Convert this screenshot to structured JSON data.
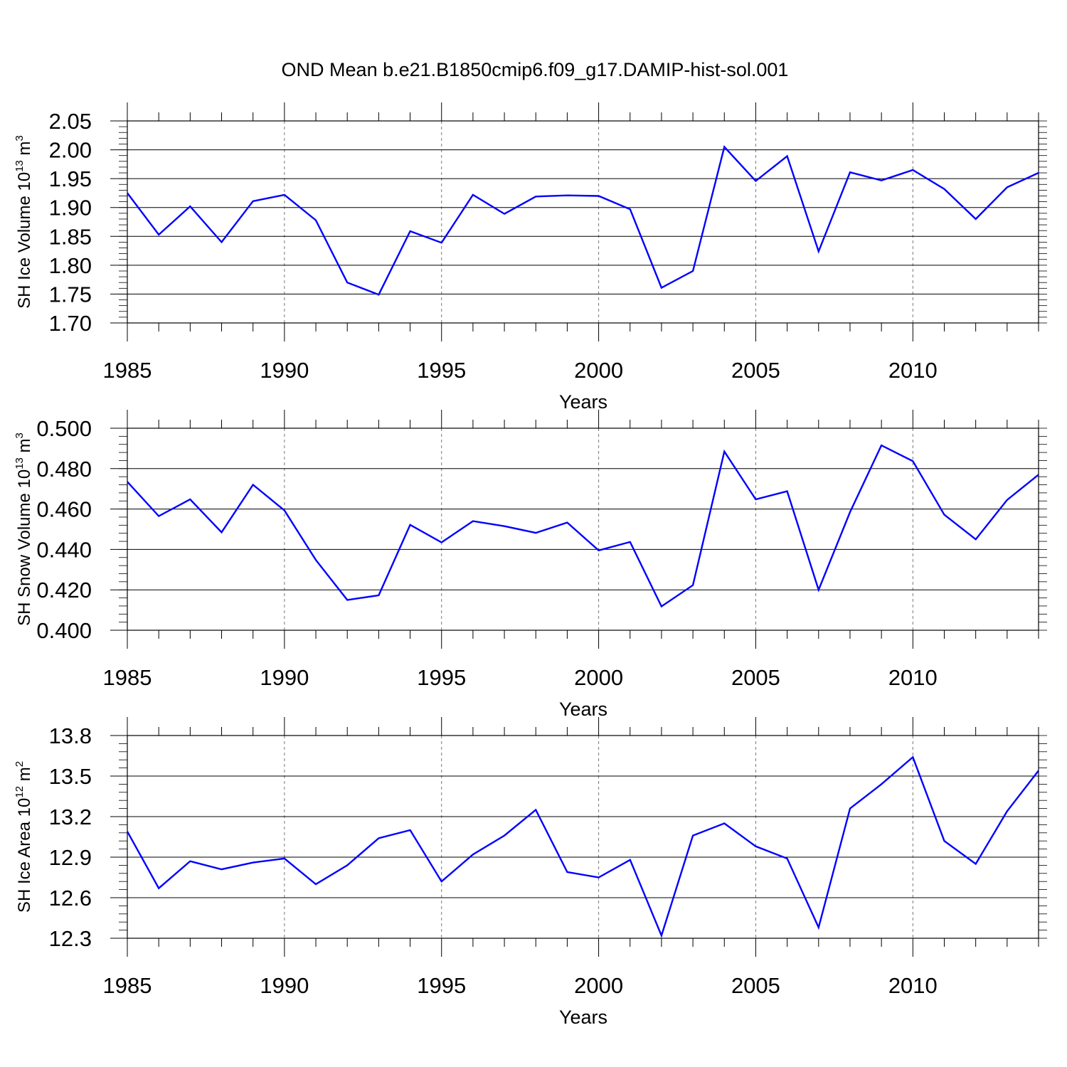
{
  "figure_title": "OND Mean b.e21.B1850cmip6.f09_g17.DAMIP-hist-sol.001",
  "line_color": "#0000ff",
  "chart_data": [
    {
      "type": "line",
      "title": "",
      "xlabel": "Years",
      "ylabel_main": "SH Ice Volume 10",
      "ylabel_exp": "13",
      "ylabel_unit": "m",
      "ylabel_unit_exp": "3",
      "xlim": [
        1985,
        2014
      ],
      "ylim": [
        1.7,
        2.05
      ],
      "xticks": [
        1985,
        1990,
        1995,
        2000,
        2005,
        2010
      ],
      "yticks": [
        1.7,
        1.75,
        1.8,
        1.85,
        1.9,
        1.95,
        2.0,
        2.05
      ],
      "ytick_labels": [
        "1.70",
        "1.75",
        "1.80",
        "1.85",
        "1.90",
        "1.95",
        "2.00",
        "2.05"
      ],
      "yminor_step": 0.01,
      "series": [
        {
          "name": "SH Ice Volume",
          "x": [
            1985,
            1986,
            1987,
            1988,
            1989,
            1990,
            1991,
            1992,
            1993,
            1994,
            1995,
            1996,
            1997,
            1998,
            1999,
            2000,
            2001,
            2002,
            2003,
            2004,
            2005,
            2006,
            2007,
            2008,
            2009,
            2010,
            2011,
            2012,
            2013,
            2014
          ],
          "values": [
            1.925,
            1.853,
            1.902,
            1.84,
            1.911,
            1.922,
            1.878,
            1.77,
            1.749,
            1.859,
            1.839,
            1.922,
            1.889,
            1.919,
            1.921,
            1.92,
            1.897,
            1.761,
            1.79,
            2.005,
            1.946,
            1.989,
            1.824,
            1.961,
            1.947,
            1.965,
            1.932,
            1.88,
            1.935,
            1.96
          ]
        }
      ]
    },
    {
      "type": "line",
      "title": "",
      "xlabel": "Years",
      "ylabel_main": "SH Snow Volume 10",
      "ylabel_exp": "13",
      "ylabel_unit": "m",
      "ylabel_unit_exp": "3",
      "xlim": [
        1985,
        2014
      ],
      "ylim": [
        0.4,
        0.5
      ],
      "xticks": [
        1985,
        1990,
        1995,
        2000,
        2005,
        2010
      ],
      "yticks": [
        0.4,
        0.42,
        0.44,
        0.46,
        0.48,
        0.5
      ],
      "ytick_labels": [
        "0.400",
        "0.420",
        "0.440",
        "0.460",
        "0.480",
        "0.500"
      ],
      "yminor_step": 0.004,
      "series": [
        {
          "name": "SH Snow Volume",
          "x": [
            1985,
            1986,
            1987,
            1988,
            1989,
            1990,
            1991,
            1992,
            1993,
            1994,
            1995,
            1996,
            1997,
            1998,
            1999,
            2000,
            2001,
            2002,
            2003,
            2004,
            2005,
            2006,
            2007,
            2008,
            2009,
            2010,
            2011,
            2012,
            2013,
            2014
          ],
          "values": [
            0.4735,
            0.4565,
            0.4648,
            0.4485,
            0.472,
            0.4593,
            0.4348,
            0.415,
            0.4173,
            0.4522,
            0.4435,
            0.454,
            0.4515,
            0.4482,
            0.4533,
            0.4395,
            0.4437,
            0.4118,
            0.4223,
            0.4885,
            0.4648,
            0.4688,
            0.42,
            0.4585,
            0.4915,
            0.4837,
            0.4572,
            0.445,
            0.4645,
            0.477
          ]
        }
      ]
    },
    {
      "type": "line",
      "title": "",
      "xlabel": "Years",
      "ylabel_main": "SH Ice Area 10",
      "ylabel_exp": "12",
      "ylabel_unit": "m",
      "ylabel_unit_exp": "2",
      "xlim": [
        1985,
        2014
      ],
      "ylim": [
        12.3,
        13.8
      ],
      "xticks": [
        1985,
        1990,
        1995,
        2000,
        2005,
        2010
      ],
      "yticks": [
        12.3,
        12.6,
        12.9,
        13.2,
        13.5,
        13.8
      ],
      "ytick_labels": [
        "12.3",
        "12.6",
        "12.9",
        "13.2",
        "13.5",
        "13.8"
      ],
      "yminor_step": 0.06,
      "series": [
        {
          "name": "SH Ice Area",
          "x": [
            1985,
            1986,
            1987,
            1988,
            1989,
            1990,
            1991,
            1992,
            1993,
            1994,
            1995,
            1996,
            1997,
            1998,
            1999,
            2000,
            2001,
            2002,
            2003,
            2004,
            2005,
            2006,
            2007,
            2008,
            2009,
            2010,
            2011,
            2012,
            2013,
            2014
          ],
          "values": [
            13.09,
            12.67,
            12.87,
            12.81,
            12.86,
            12.89,
            12.7,
            12.84,
            13.04,
            13.1,
            12.72,
            12.92,
            13.06,
            13.25,
            12.79,
            12.75,
            12.88,
            12.32,
            13.06,
            13.15,
            12.98,
            12.89,
            12.38,
            13.26,
            13.44,
            13.64,
            13.02,
            12.85,
            13.24,
            13.54
          ]
        }
      ]
    }
  ]
}
